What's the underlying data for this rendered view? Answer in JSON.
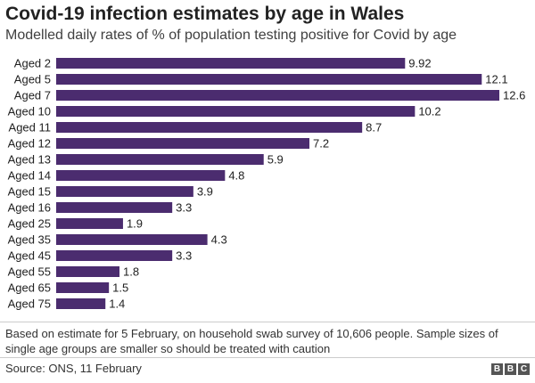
{
  "header": {
    "title": "Covid-19 infection estimates by age in Wales",
    "subtitle": "Modelled daily rates of % of population testing positive for Covid by age"
  },
  "footer": {
    "note": "Based on estimate for 5 February, on household swab survey of 10,606 people. Sample sizes of single age groups are smaller so should be treated with caution",
    "source": "Source: ONS, 11 February",
    "logo_letters": [
      "B",
      "B",
      "C"
    ]
  },
  "chart_data": {
    "type": "bar",
    "orientation": "horizontal",
    "title": "Covid-19 infection estimates by age in Wales",
    "subtitle": "Modelled daily rates of % of population testing positive for Covid by age",
    "categories": [
      "Aged 2",
      "Aged 5",
      "Aged 7",
      "Aged 10",
      "Aged 11",
      "Aged 12",
      "Aged 13",
      "Aged 14",
      "Aged 15",
      "Aged 16",
      "Aged 25",
      "Aged 35",
      "Aged 45",
      "Aged 55",
      "Aged 65",
      "Aged 75"
    ],
    "values": [
      9.92,
      12.1,
      12.6,
      10.2,
      8.7,
      7.2,
      5.9,
      4.8,
      3.9,
      3.3,
      1.9,
      4.3,
      3.3,
      1.8,
      1.5,
      1.4
    ],
    "value_labels": [
      "9.92",
      "12.1",
      "12.6",
      "10.2",
      "8.7",
      "7.2",
      "5.9",
      "4.8",
      "3.9",
      "3.3",
      "1.9",
      "4.3",
      "3.3",
      "1.8",
      "1.5",
      "1.4"
    ],
    "xlim": [
      0,
      12.6
    ],
    "grid": false,
    "legend": "none",
    "bar_color": "#4b2c6f"
  }
}
